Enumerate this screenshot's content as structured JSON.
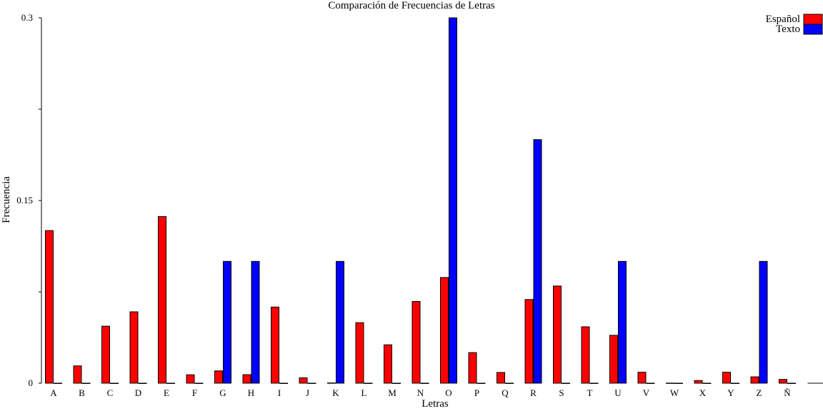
{
  "chart_data": {
    "type": "bar",
    "title": "Comparación de Frecuencias de Letras",
    "xlabel": "Letras",
    "ylabel": "Frecuencia",
    "ylim": [
      0,
      0.3
    ],
    "yticks": [
      "0",
      "0.15",
      "0.3"
    ],
    "grid": false,
    "legend_position": "top-right",
    "categories": [
      "A",
      "B",
      "C",
      "D",
      "E",
      "F",
      "G",
      "H",
      "I",
      "J",
      "K",
      "L",
      "M",
      "N",
      "O",
      "P",
      "Q",
      "R",
      "S",
      "T",
      "U",
      "V",
      "W",
      "X",
      "Y",
      "Z",
      "Ñ"
    ],
    "series": [
      {
        "name": "Español",
        "color": "#ff0000",
        "values": [
          0.1253,
          0.0142,
          0.0468,
          0.0586,
          0.1368,
          0.0069,
          0.0101,
          0.007,
          0.0625,
          0.0044,
          0.0002,
          0.0497,
          0.0315,
          0.0671,
          0.0868,
          0.0251,
          0.0088,
          0.0687,
          0.0798,
          0.0463,
          0.0393,
          0.009,
          0.0001,
          0.0022,
          0.009,
          0.0052,
          0.0031
        ]
      },
      {
        "name": "Texto",
        "color": "#0000ff",
        "values": [
          0,
          0,
          0,
          0,
          0,
          0,
          0.1,
          0.1,
          0,
          0,
          0.1,
          0,
          0,
          0,
          0.3,
          0,
          0,
          0.2,
          0,
          0,
          0.1,
          0,
          0,
          0,
          0,
          0.1,
          0
        ]
      }
    ]
  }
}
